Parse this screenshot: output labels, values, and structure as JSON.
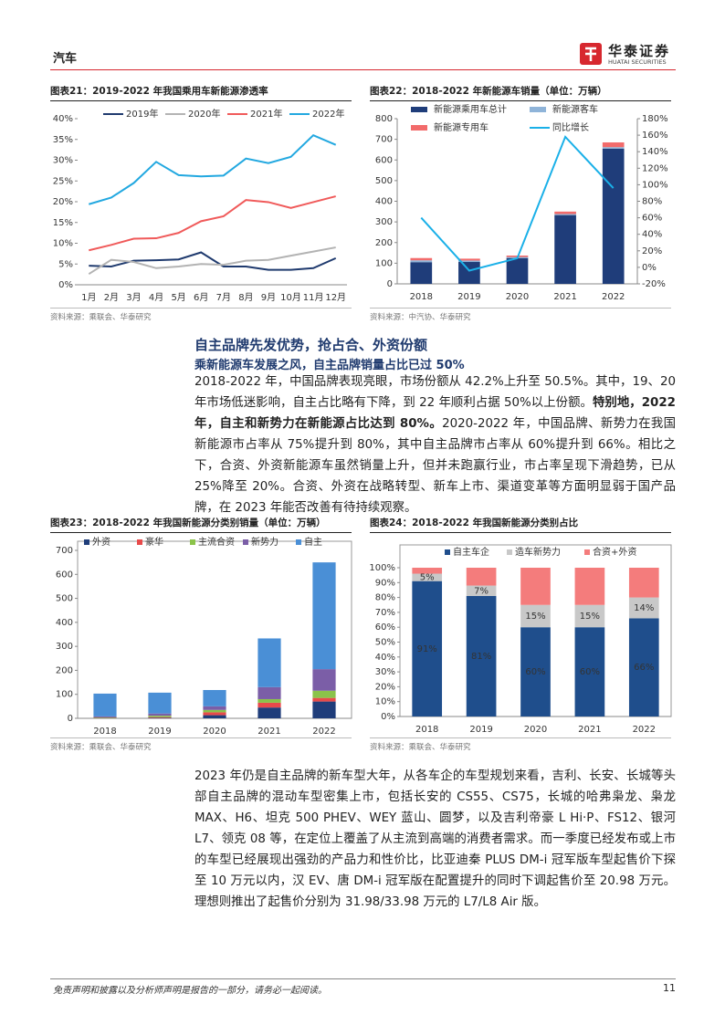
{
  "header": {
    "section": "汽车",
    "logo_cn": "华泰证券",
    "logo_en": "HUATAI SECURITIES"
  },
  "chart_data": [
    {
      "type": "line",
      "title": "图表21：2019-2022 年我国乘用车新能源渗透率",
      "source": "资料来源：乘联会、华泰研究",
      "categories": [
        "1月",
        "2月",
        "3月",
        "4月",
        "5月",
        "6月",
        "7月",
        "8月",
        "9月",
        "10月",
        "11月",
        "12月"
      ],
      "series": [
        {
          "name": "2019年",
          "color": "#1f3a6e",
          "values": [
            4.6,
            4.4,
            5.8,
            5.9,
            6.1,
            7.8,
            4.4,
            4.4,
            3.6,
            3.6,
            4.0,
            6.4
          ]
        },
        {
          "name": "2020年",
          "color": "#b3b3b3",
          "values": [
            2.6,
            6.0,
            5.5,
            4.0,
            4.4,
            5.0,
            4.8,
            5.8,
            6.0,
            7.0,
            8.0,
            9.0
          ]
        },
        {
          "name": "2021年",
          "color": "#f05a5a",
          "values": [
            8.3,
            9.6,
            11.1,
            11.2,
            12.5,
            15.3,
            16.5,
            20.4,
            19.9,
            18.5,
            19.9,
            21.3
          ]
        },
        {
          "name": "2022年",
          "color": "#22a8e0",
          "values": [
            19.4,
            21.0,
            24.5,
            29.6,
            26.4,
            26.1,
            26.3,
            30.4,
            29.3,
            30.8,
            36.0,
            33.7
          ]
        }
      ],
      "ylim": [
        0,
        40
      ],
      "yticks": [
        {
          "value": 0,
          "label": "0%"
        },
        {
          "value": 5,
          "label": "5%"
        },
        {
          "value": 10,
          "label": "10%"
        },
        {
          "value": 15,
          "label": "15%"
        },
        {
          "value": 20,
          "label": "20%"
        },
        {
          "value": 25,
          "label": "25%"
        },
        {
          "value": 30,
          "label": "30%"
        },
        {
          "value": 35,
          "label": "35%"
        },
        {
          "value": 40,
          "label": "40%"
        }
      ],
      "grid": false
    },
    {
      "type": "bar",
      "stacked": true,
      "title": "图表22：2018-2022 年新能源车销量（单位：万辆）",
      "source": "资料来源：中汽协、华泰研究",
      "categories": [
        "2018",
        "2019",
        "2020",
        "2021",
        "2022"
      ],
      "series": [
        {
          "name": "新能源乘用车总计",
          "color": "#1f3d7a",
          "values": [
            105,
            106,
            125,
            333,
            655
          ]
        },
        {
          "name": "新能源客车",
          "color": "#8fb4d9",
          "values": [
            9,
            7,
            5,
            5,
            7
          ]
        },
        {
          "name": "新能源专用车",
          "color": "#f26b6b",
          "values": [
            11,
            9,
            7,
            12,
            23
          ]
        },
        {
          "name": "同比增长",
          "color": "#1ab0e8",
          "axis": "y2",
          "values": [
            60,
            -4,
            11,
            158,
            96
          ]
        }
      ],
      "ylim": [
        0,
        800
      ],
      "yticks": [
        0,
        100,
        200,
        300,
        400,
        500,
        600,
        700,
        800
      ],
      "y2lim": [
        -20,
        180
      ],
      "y2ticks": [
        {
          "value": -20,
          "label": "-20%"
        },
        {
          "value": 0,
          "label": "0%"
        },
        {
          "value": 20,
          "label": "20%"
        },
        {
          "value": 40,
          "label": "40%"
        },
        {
          "value": 60,
          "label": "60%"
        },
        {
          "value": 80,
          "label": "80%"
        },
        {
          "value": 100,
          "label": "100%"
        },
        {
          "value": 120,
          "label": "120%"
        },
        {
          "value": 140,
          "label": "140%"
        },
        {
          "value": 160,
          "label": "160%"
        },
        {
          "value": 180,
          "label": "180%"
        }
      ],
      "grid": false
    },
    {
      "type": "bar",
      "stacked": true,
      "title": "图表23：2018-2022 年我国新能源分类别销量（单位：万辆）",
      "source": "资料来源：乘联会、华泰研究",
      "categories": [
        "2018",
        "2019",
        "2020",
        "2021",
        "2022"
      ],
      "series": [
        {
          "name": "外资",
          "color": "#1f3d7a",
          "values": [
            1,
            2,
            13,
            45,
            70
          ]
        },
        {
          "name": "豪华",
          "color": "#e84a4a",
          "values": [
            1,
            3,
            12,
            20,
            15
          ]
        },
        {
          "name": "主流合资",
          "color": "#8bc34a",
          "values": [
            2,
            6,
            10,
            15,
            30
          ]
        },
        {
          "name": "新势力",
          "color": "#7b5ea7",
          "values": [
            4,
            9,
            15,
            50,
            90
          ]
        },
        {
          "name": "自主",
          "color": "#4a8fd6",
          "values": [
            95,
            87,
            68,
            203,
            445
          ]
        }
      ],
      "ylim": [
        0,
        700
      ],
      "yticks": [
        0,
        100,
        200,
        300,
        400,
        500,
        600,
        700
      ],
      "grid": false
    },
    {
      "type": "bar",
      "stacked": true,
      "title": "图表24：2018-2022 年我国新能源分类别占比",
      "source": "资料来源：乘联会、华泰研究",
      "categories": [
        "2018",
        "2019",
        "2020",
        "2021",
        "2022"
      ],
      "series": [
        {
          "name": "自主车企",
          "color": "#1f4e8c",
          "values": [
            91,
            81,
            60,
            60,
            66
          ],
          "value_labels": [
            "91%",
            "81%",
            "60%",
            "60%",
            "66%"
          ]
        },
        {
          "name": "造车新势力",
          "color": "#c8c8c8",
          "values": [
            5,
            7,
            15,
            15,
            14
          ],
          "value_labels": [
            "5%",
            "7%",
            "15%",
            "15%",
            "14%"
          ]
        },
        {
          "name": "合资+外资",
          "color": "#f47c7c",
          "values": [
            4,
            12,
            25,
            25,
            20
          ]
        }
      ],
      "ylim": [
        0,
        100
      ],
      "yticks": [
        {
          "value": 0,
          "label": "0%"
        },
        {
          "value": 10,
          "label": "10%"
        },
        {
          "value": 20,
          "label": "20%"
        },
        {
          "value": 30,
          "label": "30%"
        },
        {
          "value": 40,
          "label": "40%"
        },
        {
          "value": 50,
          "label": "50%"
        },
        {
          "value": 60,
          "label": "60%"
        },
        {
          "value": 70,
          "label": "70%"
        },
        {
          "value": 80,
          "label": "80%"
        },
        {
          "value": 90,
          "label": "90%"
        },
        {
          "value": 100,
          "label": "100%"
        }
      ],
      "grid": false
    }
  ],
  "heading": "自主品牌先发优势，抢占合、外资份额",
  "subheading": "乘新能源车发展之风，自主品牌销量占比已过 50%",
  "paragraphs": [
    {
      "runs": [
        {
          "text": "2018-2022 年，中国品牌表现亮眼，市场份额从 42.2%上升至 50.5%。其中，19、20 年市场低迷影响，自主占比略有下降，到 22 年顺利占据 50%以上份额。",
          "bold": false
        },
        {
          "text": "特别地，2022 年，自主和新势力在新能源占比达到 80%。",
          "bold": true
        },
        {
          "text": "2020-2022 年，中国品牌、新势力在我国新能源市占率从 75%提升到 80%，其中自主品牌市占率从 60%提升到 66%。相比之下，合资、外资新能源车虽然销量上升，但并未跑赢行业，市占率呈现下滑趋势，已从 25%降至 20%。合资、外资在战略转型、新车上市、渠道变革等方面明显弱于国产品牌，在 2023 年能否改善有待持续观察。",
          "bold": false
        }
      ]
    },
    {
      "runs": [
        {
          "text": "2023 年仍是自主品牌的新车型大年，从各车企的车型规划来看，吉利、长安、长城等头部自主品牌的混动车型密集上市，包括长安的 CS55、CS75，长城的哈弗枭龙、枭龙 MAX、H6、坦克 500 PHEV、WEY 蓝山、圆梦，以及吉利帝豪 L Hi·P、FS12、银河 L7、领克 08 等，在定位上覆盖了从主流到高端的消费者需求。而一季度已经发布或上市的车型已经展现出强劲的产品力和性价比，比亚迪秦 PLUS DM-i 冠军版车型起售价下探至 10 万元以内，汉 EV、唐 DM-i 冠军版在配置提升的同时下调起售价至 20.98 万元。理想则推出了起售价分别为 31.98/33.98 万元的 L7/L8 Air 版。",
          "bold": false
        }
      ]
    }
  ],
  "footer": {
    "disclaimer": "免责声明和披露以及分析师声明是报告的一部分，请务必一起阅读。",
    "page": 11
  }
}
